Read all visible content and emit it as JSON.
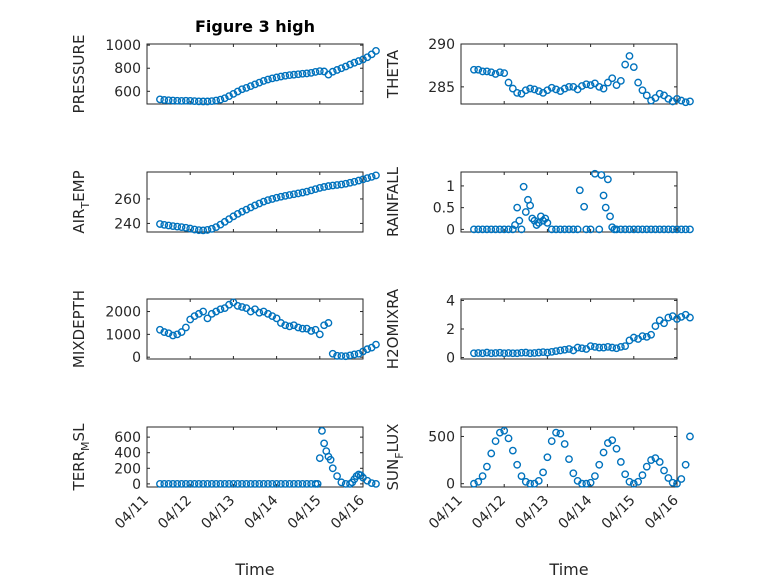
{
  "color": "#0072BD",
  "grid": true,
  "chart_data": [
    {
      "type": "scatter",
      "title": "Figure 3 high",
      "ylabel": "PRESSURE",
      "ylim": [
        490,
        1010
      ],
      "yticks": [
        600,
        800,
        1000
      ],
      "xticks": [
        "04/11",
        "04/12",
        "04/13",
        "04/14",
        "04/15",
        "04/16"
      ],
      "show_xticks": false,
      "x": [
        0.3,
        0.4,
        0.5,
        0.6,
        0.7,
        0.8,
        0.9,
        1.0,
        1.1,
        1.2,
        1.3,
        1.4,
        1.5,
        1.6,
        1.7,
        1.8,
        1.9,
        2.0,
        2.1,
        2.2,
        2.3,
        2.4,
        2.5,
        2.6,
        2.7,
        2.8,
        2.9,
        3.0,
        3.1,
        3.2,
        3.3,
        3.4,
        3.5,
        3.6,
        3.7,
        3.8,
        3.9,
        4.0,
        4.1,
        4.2,
        4.3,
        4.4,
        4.5,
        4.6,
        4.7,
        4.8,
        4.9,
        5.0,
        5.1,
        5.2,
        5.3
      ],
      "y": [
        530,
        525,
        522,
        520,
        518,
        517,
        518,
        517,
        515,
        513,
        512,
        512,
        515,
        520,
        528,
        540,
        558,
        578,
        598,
        618,
        630,
        645,
        660,
        675,
        690,
        702,
        712,
        720,
        728,
        735,
        740,
        744,
        748,
        752,
        755,
        760,
        768,
        775,
        772,
        745,
        770,
        785,
        800,
        815,
        832,
        848,
        862,
        876,
        895,
        920,
        950
      ]
    },
    {
      "type": "scatter",
      "ylabel": "THETA",
      "ylim": [
        283,
        290
      ],
      "yticks": [
        285,
        290
      ],
      "xticks": [
        "04/11",
        "04/12",
        "04/13",
        "04/14",
        "04/15",
        "04/16"
      ],
      "show_xticks": false,
      "x": [
        0.3,
        0.4,
        0.5,
        0.6,
        0.7,
        0.8,
        0.9,
        1.0,
        1.1,
        1.2,
        1.3,
        1.4,
        1.5,
        1.6,
        1.7,
        1.8,
        1.9,
        2.0,
        2.1,
        2.2,
        2.3,
        2.4,
        2.5,
        2.6,
        2.7,
        2.8,
        2.9,
        3.0,
        3.1,
        3.2,
        3.3,
        3.4,
        3.5,
        3.6,
        3.7,
        3.8,
        3.9,
        4.0,
        4.1,
        4.2,
        4.3,
        4.4,
        4.5,
        4.6,
        4.7,
        4.8,
        4.9,
        5.0,
        5.1,
        5.2,
        5.3
      ],
      "y": [
        287.0,
        287.0,
        286.8,
        286.8,
        286.7,
        286.5,
        286.7,
        286.6,
        285.5,
        284.8,
        284.3,
        284.2,
        284.6,
        284.8,
        284.7,
        284.5,
        284.3,
        284.6,
        284.9,
        284.7,
        284.5,
        284.8,
        285.0,
        285.0,
        284.7,
        285.1,
        285.3,
        285.2,
        285.4,
        285.0,
        284.8,
        285.5,
        286.0,
        285.2,
        285.7,
        287.6,
        288.6,
        287.3,
        285.5,
        284.6,
        284.0,
        283.4,
        283.7,
        284.2,
        284.0,
        283.6,
        283.3,
        283.6,
        283.4,
        283.2,
        283.3
      ]
    },
    {
      "type": "scatter",
      "ylabel": "AIR_TEMP",
      "ylim": [
        233,
        282
      ],
      "yticks": [
        240,
        260
      ],
      "xticks": [
        "04/11",
        "04/12",
        "04/13",
        "04/14",
        "04/15",
        "04/16"
      ],
      "show_xticks": false,
      "x": [
        0.3,
        0.4,
        0.5,
        0.6,
        0.7,
        0.8,
        0.9,
        1.0,
        1.1,
        1.2,
        1.3,
        1.4,
        1.5,
        1.6,
        1.7,
        1.8,
        1.9,
        2.0,
        2.1,
        2.2,
        2.3,
        2.4,
        2.5,
        2.6,
        2.7,
        2.8,
        2.9,
        3.0,
        3.1,
        3.2,
        3.3,
        3.4,
        3.5,
        3.6,
        3.7,
        3.8,
        3.9,
        4.0,
        4.1,
        4.2,
        4.3,
        4.4,
        4.5,
        4.6,
        4.7,
        4.8,
        4.9,
        5.0,
        5.1,
        5.2,
        5.3
      ],
      "y": [
        239.5,
        238.8,
        238.3,
        237.8,
        237.4,
        237.0,
        236.5,
        235.8,
        235.0,
        234.5,
        234.3,
        234.7,
        235.6,
        237.0,
        239.0,
        241.3,
        243.5,
        245.8,
        247.8,
        249.6,
        251.3,
        253.0,
        254.7,
        256.3,
        257.8,
        259.0,
        260.0,
        261.0,
        261.8,
        262.5,
        263.2,
        263.8,
        264.5,
        265.2,
        266.0,
        267.0,
        268.0,
        269.0,
        269.8,
        270.5,
        271.0,
        271.4,
        271.8,
        272.4,
        273.2,
        274.0,
        275.0,
        276.0,
        277.0,
        278.0,
        279.2
      ]
    },
    {
      "type": "scatter",
      "ylabel": "RAINFALL",
      "ylim": [
        -0.06,
        1.32
      ],
      "yticks": [
        0,
        0.5,
        1
      ],
      "xticks": [
        "04/11",
        "04/12",
        "04/13",
        "04/14",
        "04/15",
        "04/16"
      ],
      "show_xticks": false,
      "x": [
        0.3,
        0.4,
        0.5,
        0.6,
        0.7,
        0.8,
        0.9,
        1.0,
        1.1,
        1.2,
        1.25,
        1.3,
        1.35,
        1.4,
        1.45,
        1.5,
        1.55,
        1.6,
        1.65,
        1.7,
        1.75,
        1.8,
        1.85,
        1.9,
        1.95,
        2.0,
        2.1,
        2.2,
        2.3,
        2.4,
        2.5,
        2.6,
        2.7,
        2.75,
        2.85,
        2.9,
        3.0,
        3.1,
        3.2,
        3.25,
        3.3,
        3.35,
        3.4,
        3.45,
        3.5,
        3.55,
        3.6,
        3.7,
        3.8,
        3.9,
        4.0,
        4.1,
        4.2,
        4.3,
        4.4,
        4.5,
        4.6,
        4.7,
        4.8,
        4.9,
        5.0,
        5.1,
        5.2,
        5.3
      ],
      "y": [
        0,
        0,
        0,
        0,
        0,
        0,
        0,
        0,
        0,
        0,
        0.1,
        0.5,
        0.2,
        0.0,
        0.98,
        0.4,
        0.68,
        0.55,
        0.25,
        0.2,
        0.1,
        0.15,
        0.3,
        0.2,
        0.25,
        0.15,
        0,
        0,
        0,
        0,
        0,
        0,
        0,
        0.9,
        0.52,
        0,
        0,
        1.28,
        0,
        1.25,
        0.78,
        0.5,
        1.15,
        0.3,
        0.05,
        0,
        0,
        0,
        0,
        0,
        0,
        0,
        0,
        0,
        0,
        0,
        0,
        0,
        0,
        0,
        0,
        0,
        0,
        0
      ]
    },
    {
      "type": "scatter",
      "ylabel": "MIXDEPTH",
      "ylim": [
        -80,
        2550
      ],
      "yticks": [
        0,
        1000,
        2000
      ],
      "xticks": [
        "04/11",
        "04/12",
        "04/13",
        "04/14",
        "04/15",
        "04/16"
      ],
      "show_xticks": false,
      "x": [
        0.3,
        0.4,
        0.5,
        0.6,
        0.7,
        0.8,
        0.9,
        1.0,
        1.1,
        1.2,
        1.3,
        1.4,
        1.5,
        1.6,
        1.7,
        1.8,
        1.9,
        2.0,
        2.1,
        2.2,
        2.3,
        2.4,
        2.5,
        2.6,
        2.7,
        2.8,
        2.9,
        3.0,
        3.1,
        3.2,
        3.3,
        3.4,
        3.5,
        3.6,
        3.7,
        3.8,
        3.9,
        4.0,
        4.1,
        4.2,
        4.3,
        4.4,
        4.5,
        4.6,
        4.7,
        4.8,
        4.9,
        5.0,
        5.1,
        5.2,
        5.3
      ],
      "y": [
        1200,
        1100,
        1050,
        950,
        1000,
        1100,
        1300,
        1650,
        1800,
        1900,
        2000,
        1700,
        1900,
        2000,
        2100,
        2150,
        2300,
        2400,
        2250,
        2200,
        2150,
        2000,
        2100,
        1950,
        2000,
        1900,
        1800,
        1700,
        1500,
        1400,
        1350,
        1400,
        1300,
        1250,
        1250,
        1150,
        1200,
        1000,
        1400,
        1500,
        150,
        60,
        50,
        40,
        80,
        120,
        150,
        250,
        350,
        420,
        550
      ]
    },
    {
      "type": "scatter",
      "ylabel": "H2OMIXRA",
      "ylim": [
        -0.1,
        4.1
      ],
      "yticks": [
        0,
        2,
        4
      ],
      "xticks": [
        "04/11",
        "04/12",
        "04/13",
        "04/14",
        "04/15",
        "04/16"
      ],
      "show_xticks": false,
      "x": [
        0.3,
        0.4,
        0.5,
        0.6,
        0.7,
        0.8,
        0.9,
        1.0,
        1.1,
        1.2,
        1.3,
        1.4,
        1.5,
        1.6,
        1.7,
        1.8,
        1.9,
        2.0,
        2.1,
        2.2,
        2.3,
        2.4,
        2.5,
        2.6,
        2.7,
        2.8,
        2.9,
        3.0,
        3.1,
        3.2,
        3.3,
        3.4,
        3.5,
        3.6,
        3.7,
        3.8,
        3.9,
        4.0,
        4.1,
        4.2,
        4.3,
        4.4,
        4.5,
        4.6,
        4.7,
        4.8,
        4.9,
        5.0,
        5.1,
        5.2,
        5.3
      ],
      "y": [
        0.3,
        0.32,
        0.3,
        0.35,
        0.3,
        0.32,
        0.34,
        0.3,
        0.32,
        0.3,
        0.3,
        0.34,
        0.35,
        0.3,
        0.32,
        0.35,
        0.38,
        0.35,
        0.4,
        0.45,
        0.5,
        0.55,
        0.6,
        0.5,
        0.7,
        0.65,
        0.6,
        0.8,
        0.75,
        0.7,
        0.7,
        0.75,
        0.7,
        0.65,
        0.75,
        0.8,
        1.2,
        1.4,
        1.3,
        1.5,
        1.45,
        1.6,
        2.2,
        2.6,
        2.4,
        2.8,
        2.9,
        2.7,
        2.85,
        3.0,
        2.8
      ]
    },
    {
      "type": "scatter",
      "ylabel": "TERR_MSL",
      "ylim": [
        -40,
        730
      ],
      "yticks": [
        0,
        200,
        400,
        600
      ],
      "xticks": [
        "04/11",
        "04/12",
        "04/13",
        "04/14",
        "04/15",
        "04/16"
      ],
      "show_xticks": true,
      "xlabel": "Time",
      "x": [
        0.3,
        0.4,
        0.5,
        0.6,
        0.7,
        0.8,
        0.9,
        1.0,
        1.1,
        1.2,
        1.3,
        1.4,
        1.5,
        1.6,
        1.7,
        1.8,
        1.9,
        2.0,
        2.1,
        2.2,
        2.3,
        2.4,
        2.5,
        2.6,
        2.7,
        2.8,
        2.9,
        3.0,
        3.1,
        3.2,
        3.3,
        3.4,
        3.5,
        3.6,
        3.7,
        3.8,
        3.9,
        3.95,
        4.0,
        4.05,
        4.1,
        4.15,
        4.2,
        4.25,
        4.3,
        4.4,
        4.5,
        4.6,
        4.7,
        4.75,
        4.8,
        4.85,
        4.9,
        4.95,
        5.0,
        5.1,
        5.2,
        5.3
      ],
      "y": [
        0,
        0,
        0,
        0,
        0,
        0,
        0,
        0,
        0,
        0,
        0,
        0,
        0,
        0,
        0,
        0,
        0,
        0,
        0,
        0,
        0,
        0,
        0,
        0,
        0,
        0,
        0,
        0,
        0,
        0,
        0,
        0,
        0,
        0,
        0,
        0,
        0,
        0,
        330,
        680,
        520,
        420,
        350,
        310,
        200,
        100,
        20,
        0,
        0,
        20,
        60,
        100,
        120,
        110,
        80,
        40,
        10,
        0
      ]
    },
    {
      "type": "scatter",
      "ylabel": "SUN_FLUX",
      "ylim": [
        -35,
        600
      ],
      "yticks": [
        0,
        500
      ],
      "xticks": [
        "04/11",
        "04/12",
        "04/13",
        "04/14",
        "04/15",
        "04/16"
      ],
      "show_xticks": true,
      "xlabel": "Time",
      "x": [
        0.3,
        0.4,
        0.5,
        0.6,
        0.7,
        0.8,
        0.9,
        1.0,
        1.1,
        1.2,
        1.3,
        1.4,
        1.5,
        1.6,
        1.7,
        1.8,
        1.9,
        2.0,
        2.1,
        2.2,
        2.3,
        2.4,
        2.5,
        2.6,
        2.7,
        2.8,
        2.9,
        3.0,
        3.1,
        3.2,
        3.3,
        3.4,
        3.5,
        3.6,
        3.7,
        3.8,
        3.9,
        4.0,
        4.1,
        4.2,
        4.3,
        4.4,
        4.5,
        4.6,
        4.7,
        4.8,
        4.9,
        5.0,
        5.1,
        5.2,
        5.3
      ],
      "y": [
        0,
        20,
        80,
        180,
        320,
        450,
        540,
        560,
        480,
        350,
        200,
        80,
        20,
        0,
        0,
        30,
        120,
        280,
        450,
        540,
        530,
        420,
        260,
        110,
        30,
        0,
        0,
        10,
        80,
        200,
        330,
        430,
        460,
        370,
        230,
        100,
        20,
        0,
        20,
        90,
        180,
        250,
        270,
        230,
        140,
        60,
        10,
        0,
        50,
        200,
        500
      ]
    }
  ]
}
